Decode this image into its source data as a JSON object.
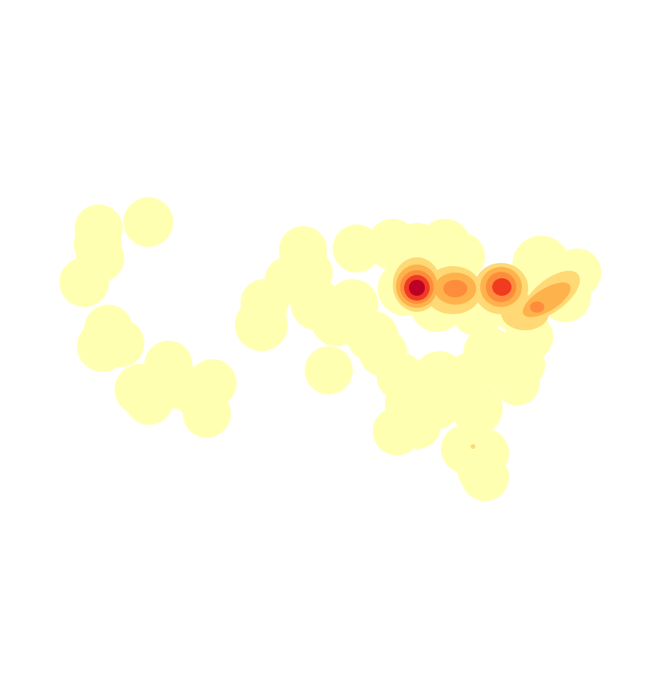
{
  "map": {
    "kind": "kernel-density-heatmap",
    "palette": [
      "#ffffb2",
      "#fed976",
      "#feb24c",
      "#fd8d3c",
      "#f03b20",
      "#bd0026"
    ],
    "background": "#ffffff"
  }
}
